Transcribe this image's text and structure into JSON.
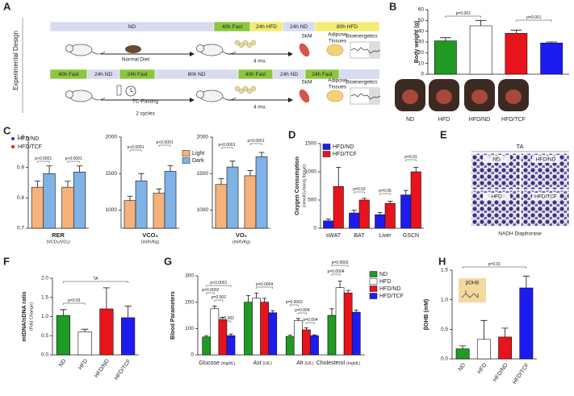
{
  "panel_labels": [
    "A",
    "B",
    "C",
    "D",
    "E",
    "F",
    "G",
    "H"
  ],
  "diagram": {
    "side_label": "Experimental Design",
    "row1": [
      "ND",
      "40h Fast",
      "24h HFD",
      "24h ND",
      "80h HFD"
    ],
    "row2": [
      "40h Fast",
      "24h ND",
      "24h Fast",
      "80h ND",
      "40h Fast",
      "24h ND",
      "24h Fast"
    ],
    "row1_notes": [
      "Normal Diet",
      "4 mo.",
      "SkM",
      "Adipose",
      "Tissues",
      "Bioenergetics"
    ],
    "row2_notes": [
      "TC-Fasting",
      "2 cycles",
      "4 mo.",
      "SkM",
      "Adipose",
      "Tissues",
      "Bioenergetics"
    ]
  },
  "histology": {
    "title": "TA",
    "tiles": [
      "ND",
      "HFD/ND",
      "HFD",
      "HFD/TCF"
    ],
    "caption": "NADH Diaphorase"
  },
  "chart_data": [
    {
      "type": "bar",
      "ylabel": "Body weight (g)",
      "categories": [
        "ND",
        "HFD",
        "HFD/ND",
        "HFD/TCF"
      ],
      "values": [
        31,
        45,
        38,
        29
      ],
      "errors": [
        3,
        5,
        3,
        1
      ],
      "colors": [
        "#1f9a22",
        "#ffffff",
        "#e8141b",
        "#1c1cf0"
      ],
      "ylim": [
        0,
        60
      ],
      "yticks": [
        0,
        10,
        20,
        30,
        40,
        50,
        60
      ],
      "annotations": [
        "p=0.001",
        "p=0.001"
      ]
    },
    {
      "type": "bar",
      "xlabel": "RER",
      "xlabel_units": "(VCO₂/VO₂)",
      "categories": [
        null,
        null
      ],
      "series": [
        {
          "name": "Light",
          "color": "#f6b27b",
          "values": [
            0.835,
            0.835
          ],
          "errors": [
            0.02,
            0.02
          ]
        },
        {
          "name": "Dark",
          "color": "#7fb3e6",
          "values": [
            0.88,
            0.885
          ],
          "errors": [
            0.025,
            0.02
          ]
        }
      ],
      "group_legend": [
        {
          "name": "HFD/ND",
          "color": "#1f3fbf"
        },
        {
          "name": "HFD/TCF",
          "color": "#e8141b"
        }
      ],
      "ylim": [
        0.7,
        1.0
      ],
      "yticks": [
        0.7,
        0.8,
        0.9,
        {
          "value": 1.0,
          "label": "1.0"
        }
      ],
      "legend": false,
      "annotations": [
        "p<0.0001",
        "p<0.0001"
      ]
    },
    {
      "type": "bar",
      "xlabel": "VCO₂",
      "xlabel_units": "(ml/h/Kg)",
      "categories": [
        null,
        null
      ],
      "series": [
        {
          "name": "Light",
          "color": "#f6b27b",
          "values": [
            1130,
            1230
          ],
          "errors": [
            60,
            60
          ]
        },
        {
          "name": "Dark",
          "color": "#7fb3e6",
          "values": [
            1400,
            1530
          ],
          "errors": [
            100,
            80
          ]
        }
      ],
      "ylim": [
        750,
        2000
      ],
      "yticks": [
        1000,
        1500,
        2000
      ],
      "legend": true,
      "annotations": [
        "p<0.0001",
        "p<0.0001"
      ]
    },
    {
      "type": "bar",
      "xlabel": "VO₂",
      "xlabel_units": "(ml/h/Kg)",
      "categories": [
        null,
        null
      ],
      "series": [
        {
          "name": "Light",
          "color": "#f6b27b",
          "values": [
            1350,
            1470
          ],
          "errors": [
            80,
            70
          ]
        },
        {
          "name": "Dark",
          "color": "#7fb3e6",
          "values": [
            1590,
            1730
          ],
          "errors": [
            80,
            60
          ]
        }
      ],
      "ylim": [
        750,
        2000
      ],
      "yticks": [
        1000,
        1500,
        2000
      ],
      "legend": false,
      "annotations": [
        "p<0.0001",
        "p<0.0001"
      ]
    },
    {
      "type": "bar",
      "ylabel": "Oxygen Consumption",
      "ylabel2": "(nmolO₂/min/g tissue)",
      "categories": [
        "sWAT",
        "BAT",
        "Liver",
        "GSCN"
      ],
      "series": [
        {
          "name": "HFD/ND",
          "color": "#1c1cf0",
          "values": [
            130,
            270,
            240,
            590
          ],
          "errors": [
            30,
            50,
            40,
            80
          ]
        },
        {
          "name": "HFD/TCF",
          "color": "#e8141b",
          "values": [
            740,
            500,
            440,
            1000
          ],
          "errors": [
            340,
            30,
            40,
            80
          ]
        }
      ],
      "ylim": [
        0,
        1500
      ],
      "yticks": [
        0,
        500,
        1000,
        1500
      ],
      "legend": true,
      "annotations": [
        "p=0.02",
        "p=0.06",
        "p=0.01"
      ]
    },
    {
      "type": "bar",
      "ylabel": "mtDNA/nDNA ratio",
      "ylabel2": "(Fold Change)",
      "categories": [
        "ND",
        "HFD",
        "HFD/ND",
        "HFD/TCF"
      ],
      "values": [
        1.03,
        0.6,
        1.2,
        0.97
      ],
      "errors": [
        0.15,
        0.07,
        0.55,
        0.3
      ],
      "colors": [
        "#1f9a22",
        "#ffffff",
        "#e8141b",
        "#1c1cf0"
      ],
      "ylim": [
        0,
        2
      ],
      "yticks": [
        {
          "value": 0,
          "label": "0.0"
        },
        0.5,
        {
          "value": 1,
          "label": "1.0"
        },
        1.5,
        {
          "value": 2,
          "label": "2.0"
        }
      ],
      "annotations": [
        "p=0.03",
        "TA"
      ]
    },
    {
      "type": "bar",
      "ylabel": "Blood Parameters",
      "categories": [
        "Glucose",
        "Ast",
        "Alt",
        "Cholesterol"
      ],
      "category_units": [
        "(mg/dL)",
        "(U/L)",
        "(U/L)",
        "(mg/dL)"
      ],
      "series": [
        {
          "name": "ND",
          "color": "#1f9a22",
          "values": [
            68,
            200,
            70,
            150
          ],
          "errors": [
            5,
            25,
            5,
            25
          ]
        },
        {
          "name": "HFD",
          "color": "#ffffff",
          "values": [
            175,
            215,
            130,
            255
          ],
          "errors": [
            10,
            20,
            8,
            25
          ]
        },
        {
          "name": "HFD/ND",
          "color": "#e8141b",
          "values": [
            133,
            200,
            95,
            235
          ],
          "errors": [
            10,
            15,
            8,
            10
          ]
        },
        {
          "name": "HFD/TCF",
          "color": "#1c1cf0",
          "values": [
            73,
            160,
            73,
            162
          ],
          "errors": [
            6,
            8,
            3,
            8
          ]
        }
      ],
      "ylim": [
        0,
        300
      ],
      "yticks": [
        0,
        100,
        200,
        300
      ],
      "legend": true,
      "annotations": [
        "p=0.0002",
        "p<0.0001",
        "p=0.002",
        "p=0.002",
        "p=0.0004",
        "p=0.0002",
        "p=0.004",
        "p=0.004",
        "p=0.0004",
        "p=0.0002"
      ]
    },
    {
      "type": "bar",
      "ylabel": "βOHB (mM)",
      "inset": "βOHB",
      "categories": [
        "ND",
        "HFD",
        "HFD/ND",
        "HFD/TCF"
      ],
      "values": [
        0.17,
        0.33,
        0.37,
        1.2
      ],
      "errors": [
        0.05,
        0.32,
        0.15,
        0.2
      ],
      "colors": [
        "#1f9a22",
        "#ffffff",
        "#e8141b",
        "#1c1cf0"
      ],
      "ylim": [
        0,
        1.5
      ],
      "yticks": [
        {
          "value": 0,
          "label": "0.0"
        },
        0.5,
        {
          "value": 1,
          "label": "1.0"
        },
        1.5
      ],
      "annotations": [
        "p=0.01"
      ]
    }
  ]
}
